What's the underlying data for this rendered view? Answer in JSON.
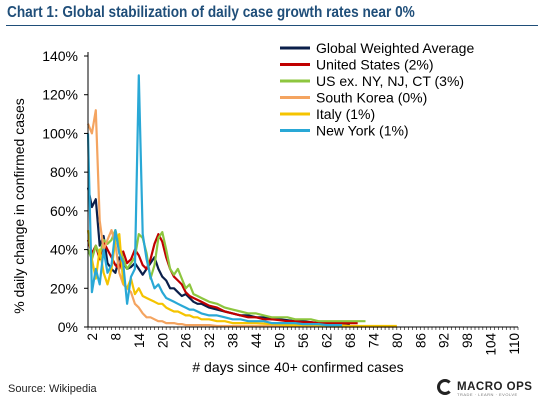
{
  "header": {
    "title": "Chart 1: Global stabilization of daily case growth rates near 0%"
  },
  "footer": {
    "source": "Source: Wikipedia",
    "logo_text": "MACRO OPS",
    "logo_tagline": "TRADE · LEARN · EVOLVE"
  },
  "chart_data": {
    "type": "line",
    "title": "Chart 1: Global stabilization of daily case growth rates near 0%",
    "xlabel": "# days since 40+ confirmed cases",
    "ylabel": "% daily change in confirmed cases",
    "xlim": [
      1,
      111
    ],
    "ylim": [
      0,
      1.4
    ],
    "x_ticks": [
      2,
      8,
      14,
      20,
      26,
      32,
      38,
      44,
      50,
      56,
      62,
      68,
      74,
      80,
      86,
      92,
      98,
      104,
      110
    ],
    "y_ticks": [
      0,
      0.2,
      0.4,
      0.6,
      0.8,
      1.0,
      1.2,
      1.4
    ],
    "y_tick_labels": [
      "0%",
      "20%",
      "40%",
      "60%",
      "80%",
      "100%",
      "120%",
      "140%"
    ],
    "grid": false,
    "legend_position": "top-right",
    "series": [
      {
        "name": "Global Weighted Average",
        "color": "#0b1f4a",
        "x": [
          1,
          2,
          3,
          4,
          5,
          6,
          7,
          8,
          9,
          10,
          11,
          12,
          13,
          14,
          15,
          16,
          17,
          18,
          19,
          20,
          21,
          22,
          23,
          24,
          25,
          26,
          27,
          28,
          29,
          30,
          32,
          34,
          36,
          38,
          40,
          42,
          44,
          46,
          48,
          50,
          52,
          54,
          56,
          58,
          60,
          62,
          64,
          66,
          68
        ],
        "y": [
          0.72,
          0.62,
          0.66,
          0.42,
          0.47,
          0.33,
          0.3,
          0.28,
          0.36,
          0.33,
          0.3,
          0.31,
          0.33,
          0.3,
          0.27,
          0.3,
          0.33,
          0.36,
          0.3,
          0.26,
          0.24,
          0.2,
          0.2,
          0.18,
          0.16,
          0.17,
          0.15,
          0.13,
          0.12,
          0.12,
          0.1,
          0.09,
          0.08,
          0.07,
          0.06,
          0.06,
          0.05,
          0.05,
          0.04,
          0.04,
          0.035,
          0.03,
          0.03,
          0.025,
          0.02,
          0.02,
          0.02,
          0.02,
          0.015
        ]
      },
      {
        "name": "United States (2%)",
        "color": "#c00000",
        "x": [
          1,
          2,
          3,
          4,
          5,
          6,
          7,
          8,
          9,
          10,
          11,
          12,
          13,
          14,
          15,
          16,
          17,
          18,
          19,
          20,
          21,
          22,
          23,
          24,
          25,
          26,
          27,
          28,
          30,
          32,
          34,
          36,
          38,
          40,
          42,
          44,
          46,
          48,
          50,
          52,
          54,
          56,
          58,
          60,
          62,
          64,
          66,
          68,
          70
        ],
        "y": [
          0.45,
          0.38,
          0.42,
          0.35,
          0.44,
          0.4,
          0.36,
          0.32,
          0.3,
          0.39,
          0.33,
          0.35,
          0.4,
          0.37,
          0.32,
          0.3,
          0.35,
          0.43,
          0.48,
          0.44,
          0.36,
          0.3,
          0.26,
          0.24,
          0.22,
          0.18,
          0.16,
          0.15,
          0.13,
          0.11,
          0.1,
          0.08,
          0.07,
          0.06,
          0.05,
          0.05,
          0.04,
          0.04,
          0.035,
          0.03,
          0.03,
          0.025,
          0.025,
          0.02,
          0.02,
          0.02,
          0.02,
          0.02,
          0.02
        ]
      },
      {
        "name": "US ex. NY, NJ, CT (3%)",
        "color": "#8dc63f",
        "x": [
          1,
          2,
          3,
          4,
          5,
          6,
          7,
          8,
          9,
          10,
          11,
          12,
          13,
          14,
          15,
          16,
          17,
          18,
          19,
          20,
          21,
          22,
          23,
          24,
          25,
          26,
          27,
          28,
          29,
          30,
          32,
          34,
          36,
          38,
          40,
          42,
          44,
          46,
          48,
          50,
          52,
          54,
          56,
          58,
          60,
          62,
          64,
          66,
          68,
          70,
          72
        ],
        "y": [
          0.4,
          0.35,
          0.42,
          0.37,
          0.45,
          0.43,
          0.45,
          0.5,
          0.42,
          0.35,
          0.3,
          0.33,
          0.36,
          0.48,
          0.46,
          0.38,
          0.25,
          0.32,
          0.46,
          0.49,
          0.4,
          0.3,
          0.27,
          0.3,
          0.25,
          0.2,
          0.22,
          0.17,
          0.16,
          0.15,
          0.13,
          0.12,
          0.1,
          0.09,
          0.08,
          0.07,
          0.07,
          0.06,
          0.05,
          0.05,
          0.05,
          0.04,
          0.04,
          0.04,
          0.03,
          0.03,
          0.03,
          0.03,
          0.03,
          0.03,
          0.03
        ]
      },
      {
        "name": "South Korea (0%)",
        "color": "#f4a460",
        "x": [
          1,
          2,
          3,
          4,
          5,
          6,
          7,
          8,
          9,
          10,
          11,
          12,
          13,
          14,
          15,
          16,
          17,
          18,
          19,
          20,
          21,
          22,
          23,
          24,
          25,
          26,
          28,
          30,
          32,
          34,
          36,
          38,
          40,
          44,
          48,
          52,
          56,
          60,
          64,
          68,
          72,
          76,
          80
        ],
        "y": [
          1.05,
          1.0,
          1.12,
          0.55,
          0.4,
          0.45,
          0.5,
          0.43,
          0.28,
          0.22,
          0.2,
          0.18,
          0.12,
          0.1,
          0.07,
          0.05,
          0.05,
          0.04,
          0.03,
          0.03,
          0.02,
          0.02,
          0.02,
          0.015,
          0.015,
          0.01,
          0.01,
          0.01,
          0.01,
          0.005,
          0.005,
          0.005,
          0.005,
          0.005,
          0.005,
          0.003,
          0.003,
          0.003,
          0.002,
          0.002,
          0.002,
          0.002,
          0.002
        ]
      },
      {
        "name": "Italy (1%)",
        "color": "#f5c400",
        "x": [
          1,
          2,
          3,
          4,
          5,
          6,
          7,
          8,
          9,
          10,
          11,
          12,
          13,
          14,
          15,
          16,
          17,
          18,
          19,
          20,
          21,
          22,
          23,
          24,
          25,
          26,
          27,
          28,
          29,
          30,
          32,
          34,
          36,
          38,
          40,
          44,
          48,
          52,
          56,
          60,
          64,
          68,
          72,
          76,
          80
        ],
        "y": [
          0.5,
          0.35,
          0.25,
          0.4,
          0.28,
          0.22,
          0.3,
          0.45,
          0.48,
          0.23,
          0.2,
          0.25,
          0.17,
          0.2,
          0.16,
          0.15,
          0.14,
          0.13,
          0.12,
          0.12,
          0.1,
          0.09,
          0.08,
          0.08,
          0.07,
          0.06,
          0.06,
          0.05,
          0.05,
          0.04,
          0.04,
          0.03,
          0.03,
          0.02,
          0.02,
          0.02,
          0.015,
          0.01,
          0.01,
          0.01,
          0.01,
          0.005,
          0.005,
          0.005,
          0.005
        ]
      },
      {
        "name": "New York (1%)",
        "color": "#29a8d6",
        "x": [
          1,
          2,
          3,
          4,
          5,
          6,
          7,
          8,
          9,
          10,
          11,
          12,
          13,
          14,
          15,
          16,
          17,
          18,
          19,
          20,
          21,
          22,
          23,
          24,
          25,
          26,
          27,
          28,
          29,
          30,
          32,
          34,
          36,
          38,
          40,
          42,
          44,
          46,
          48,
          50,
          52,
          54,
          56,
          58,
          60,
          62,
          64,
          66
        ],
        "y": [
          1.0,
          0.18,
          0.3,
          0.22,
          0.4,
          0.28,
          0.32,
          0.5,
          0.38,
          0.33,
          0.12,
          0.26,
          0.3,
          1.3,
          0.48,
          0.35,
          0.26,
          0.2,
          0.22,
          0.18,
          0.15,
          0.14,
          0.13,
          0.12,
          0.11,
          0.1,
          0.09,
          0.09,
          0.08,
          0.07,
          0.06,
          0.06,
          0.05,
          0.04,
          0.04,
          0.03,
          0.03,
          0.03,
          0.02,
          0.02,
          0.02,
          0.02,
          0.015,
          0.015,
          0.015,
          0.01,
          0.01,
          0.01
        ]
      }
    ]
  }
}
